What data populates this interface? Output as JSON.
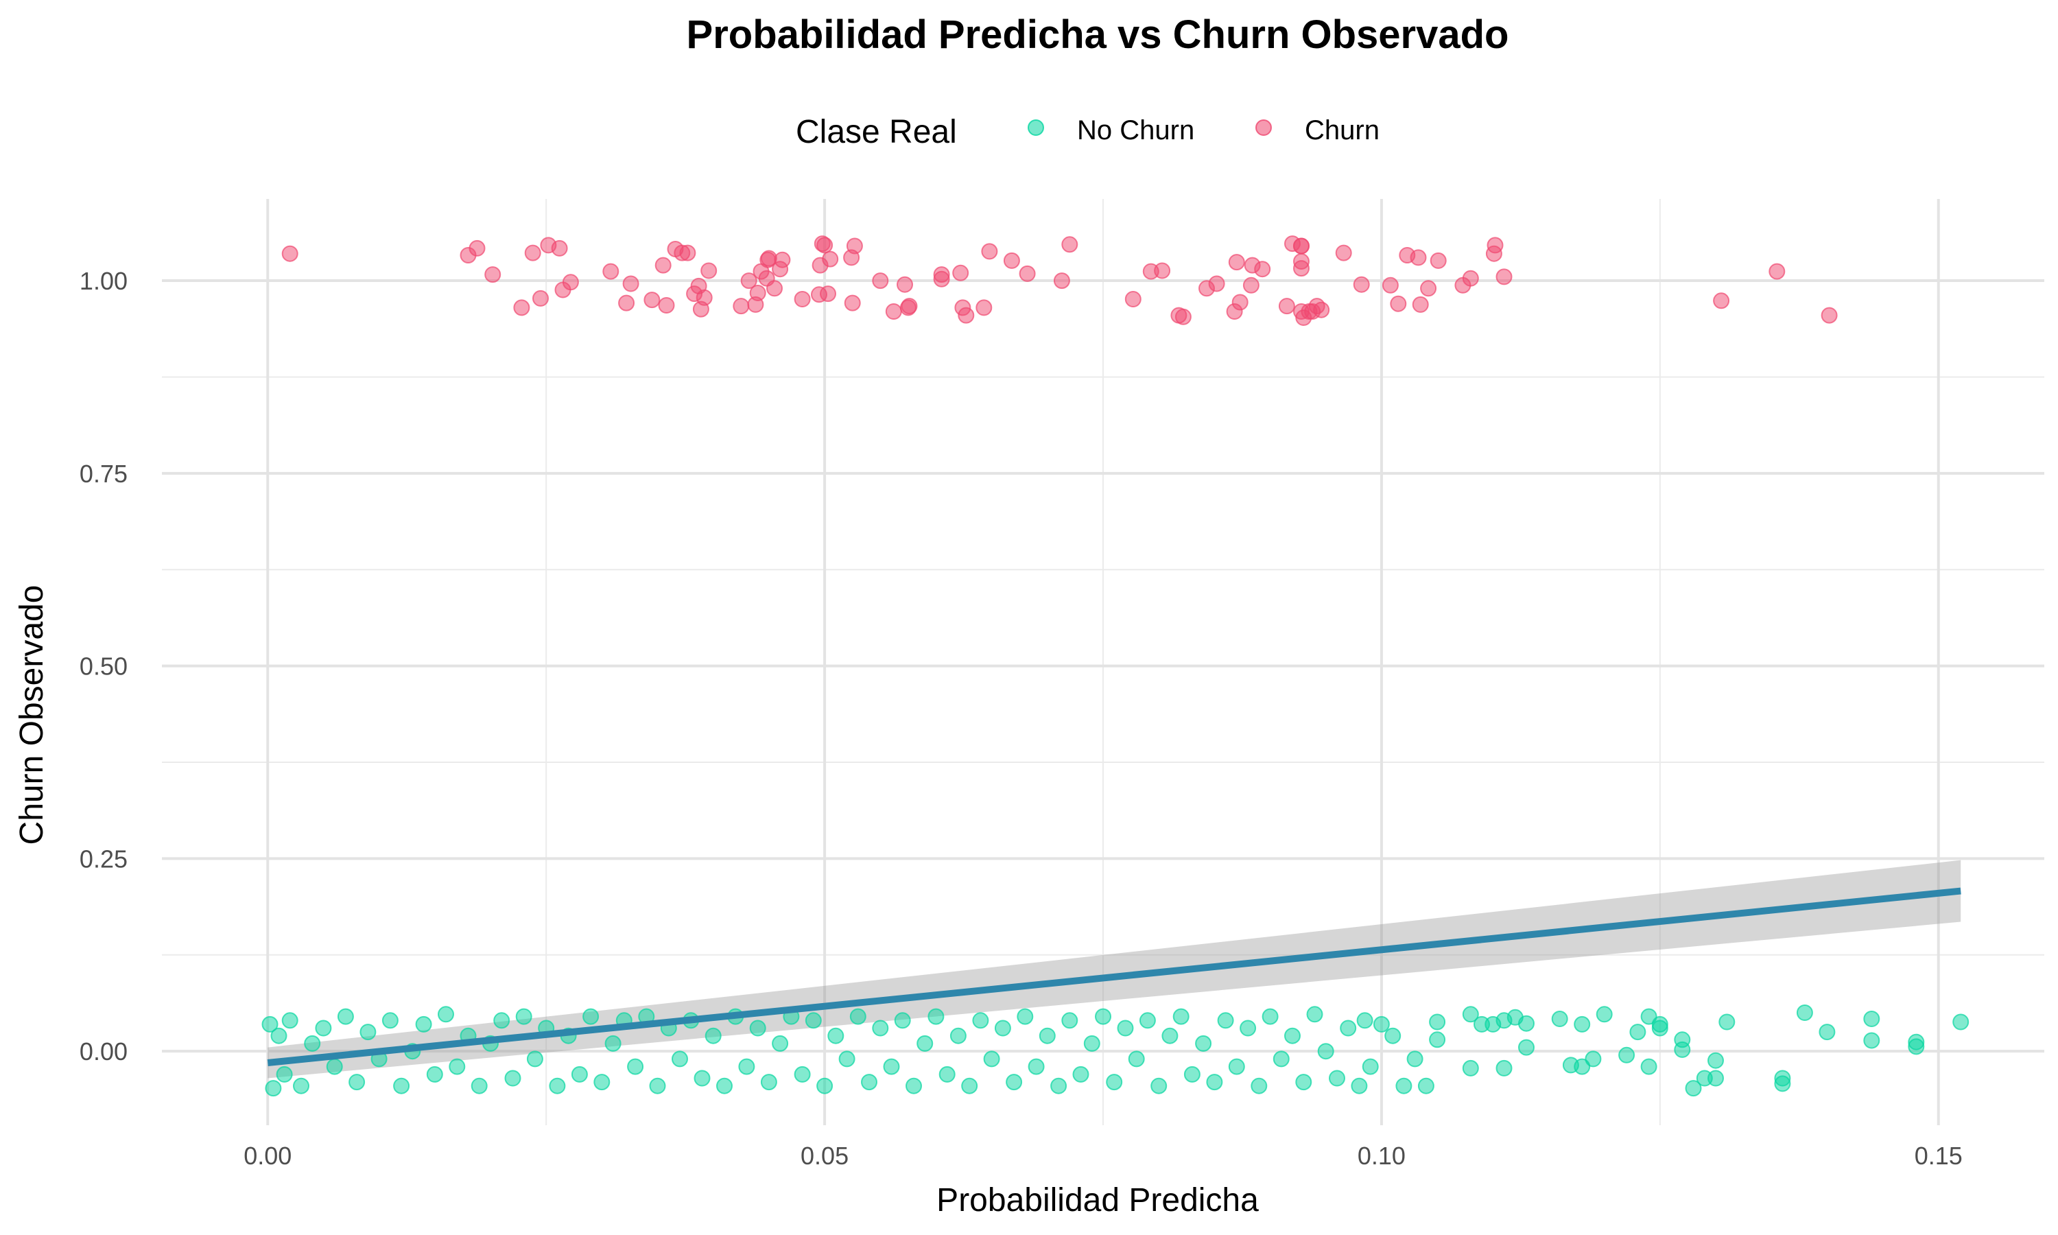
{
  "chart_data": {
    "type": "scatter",
    "title": "Probabilidad Predicha vs Churn Observado",
    "xlabel": "Probabilidad Predicha",
    "ylabel": "Churn Observado",
    "xlim": [
      -0.0095,
      0.1595
    ],
    "ylim": [
      -0.096,
      1.106
    ],
    "x_ticks": [
      0.0,
      0.05,
      0.1,
      0.15
    ],
    "x_tick_labels": [
      "0.00",
      "0.05",
      "0.10",
      "0.15"
    ],
    "y_ticks": [
      0.0,
      0.25,
      0.5,
      0.75,
      1.0
    ],
    "y_tick_labels": [
      "0.00",
      "0.25",
      "0.50",
      "0.75",
      "1.00"
    ],
    "grid": true,
    "legend": {
      "title": "Clase Real",
      "position": "top",
      "entries": [
        {
          "label": "No Churn",
          "color": "#06D6A0"
        },
        {
          "label": "Churn",
          "color": "#EF476F"
        }
      ]
    },
    "series": [
      {
        "name": "No Churn",
        "color": "#06D6A0",
        "jitter_note": "points jittered vertically around 0",
        "points": [
          [
            0.0002,
            0.035
          ],
          [
            0.0005,
            -0.048
          ],
          [
            0.001,
            0.02
          ],
          [
            0.0015,
            -0.03
          ],
          [
            0.002,
            0.04
          ],
          [
            0.003,
            -0.045
          ],
          [
            0.004,
            0.01
          ],
          [
            0.005,
            0.03
          ],
          [
            0.006,
            -0.02
          ],
          [
            0.007,
            0.045
          ],
          [
            0.008,
            -0.04
          ],
          [
            0.009,
            0.025
          ],
          [
            0.01,
            -0.01
          ],
          [
            0.011,
            0.04
          ],
          [
            0.012,
            -0.045
          ],
          [
            0.013,
            0.0
          ],
          [
            0.014,
            0.035
          ],
          [
            0.015,
            -0.03
          ],
          [
            0.016,
            0.048
          ],
          [
            0.017,
            -0.02
          ],
          [
            0.018,
            0.02
          ],
          [
            0.019,
            -0.045
          ],
          [
            0.02,
            0.01
          ],
          [
            0.021,
            0.04
          ],
          [
            0.022,
            -0.035
          ],
          [
            0.023,
            0.045
          ],
          [
            0.024,
            -0.01
          ],
          [
            0.025,
            0.03
          ],
          [
            0.026,
            -0.045
          ],
          [
            0.027,
            0.02
          ],
          [
            0.028,
            -0.03
          ],
          [
            0.029,
            0.045
          ],
          [
            0.03,
            -0.04
          ],
          [
            0.031,
            0.01
          ],
          [
            0.032,
            0.04
          ],
          [
            0.033,
            -0.02
          ],
          [
            0.034,
            0.045
          ],
          [
            0.035,
            -0.045
          ],
          [
            0.036,
            0.03
          ],
          [
            0.037,
            -0.01
          ],
          [
            0.038,
            0.04
          ],
          [
            0.039,
            -0.035
          ],
          [
            0.04,
            0.02
          ],
          [
            0.041,
            -0.045
          ],
          [
            0.042,
            0.045
          ],
          [
            0.043,
            -0.02
          ],
          [
            0.044,
            0.03
          ],
          [
            0.045,
            -0.04
          ],
          [
            0.046,
            0.01
          ],
          [
            0.047,
            0.045
          ],
          [
            0.048,
            -0.03
          ],
          [
            0.049,
            0.04
          ],
          [
            0.05,
            -0.045
          ],
          [
            0.051,
            0.02
          ],
          [
            0.052,
            -0.01
          ],
          [
            0.053,
            0.045
          ],
          [
            0.054,
            -0.04
          ],
          [
            0.055,
            0.03
          ],
          [
            0.056,
            -0.02
          ],
          [
            0.057,
            0.04
          ],
          [
            0.058,
            -0.045
          ],
          [
            0.059,
            0.01
          ],
          [
            0.06,
            0.045
          ],
          [
            0.061,
            -0.03
          ],
          [
            0.062,
            0.02
          ],
          [
            0.063,
            -0.045
          ],
          [
            0.064,
            0.04
          ],
          [
            0.065,
            -0.01
          ],
          [
            0.066,
            0.03
          ],
          [
            0.067,
            -0.04
          ],
          [
            0.068,
            0.045
          ],
          [
            0.069,
            -0.02
          ],
          [
            0.07,
            0.02
          ],
          [
            0.071,
            -0.045
          ],
          [
            0.072,
            0.04
          ],
          [
            0.073,
            -0.03
          ],
          [
            0.074,
            0.01
          ],
          [
            0.075,
            0.045
          ],
          [
            0.076,
            -0.04
          ],
          [
            0.077,
            0.03
          ],
          [
            0.078,
            -0.01
          ],
          [
            0.079,
            0.04
          ],
          [
            0.08,
            -0.045
          ],
          [
            0.081,
            0.02
          ],
          [
            0.082,
            0.045
          ],
          [
            0.083,
            -0.03
          ],
          [
            0.084,
            0.01
          ],
          [
            0.085,
            -0.04
          ],
          [
            0.086,
            0.04
          ],
          [
            0.087,
            -0.02
          ],
          [
            0.088,
            0.03
          ],
          [
            0.089,
            -0.045
          ],
          [
            0.09,
            0.045
          ],
          [
            0.091,
            -0.01
          ],
          [
            0.092,
            0.02
          ],
          [
            0.093,
            -0.04
          ],
          [
            0.094,
            0.048
          ],
          [
            0.095,
            0.0
          ],
          [
            0.096,
            -0.035
          ],
          [
            0.097,
            0.03
          ],
          [
            0.098,
            -0.045
          ],
          [
            0.0985,
            0.04
          ],
          [
            0.099,
            -0.02
          ],
          [
            0.1,
            0.035
          ],
          [
            0.101,
            0.02
          ],
          [
            0.102,
            -0.045
          ],
          [
            0.103,
            -0.01
          ],
          [
            0.104,
            -0.045
          ],
          [
            0.105,
            0.038
          ],
          [
            0.105,
            0.015
          ],
          [
            0.108,
            0.048
          ],
          [
            0.108,
            -0.022
          ],
          [
            0.109,
            0.035
          ],
          [
            0.11,
            0.035
          ],
          [
            0.111,
            -0.022
          ],
          [
            0.111,
            0.04
          ],
          [
            0.112,
            0.044
          ],
          [
            0.113,
            0.005
          ],
          [
            0.113,
            0.036
          ],
          [
            0.116,
            0.042
          ],
          [
            0.117,
            -0.018
          ],
          [
            0.118,
            0.035
          ],
          [
            0.118,
            -0.02
          ],
          [
            0.119,
            -0.01
          ],
          [
            0.12,
            0.048
          ],
          [
            0.122,
            -0.005
          ],
          [
            0.123,
            0.025
          ],
          [
            0.124,
            0.045
          ],
          [
            0.124,
            -0.02
          ],
          [
            0.125,
            0.035
          ],
          [
            0.125,
            0.03
          ],
          [
            0.127,
            0.015
          ],
          [
            0.127,
            0.002
          ],
          [
            0.128,
            -0.048
          ],
          [
            0.129,
            -0.035
          ],
          [
            0.13,
            -0.035
          ],
          [
            0.13,
            -0.012
          ],
          [
            0.131,
            0.038
          ],
          [
            0.136,
            -0.035
          ],
          [
            0.136,
            -0.042
          ],
          [
            0.138,
            0.05
          ],
          [
            0.14,
            0.025
          ],
          [
            0.144,
            0.042
          ],
          [
            0.144,
            0.014
          ],
          [
            0.148,
            0.012
          ],
          [
            0.148,
            0.006
          ],
          [
            0.152,
            0.038
          ]
        ]
      },
      {
        "name": "Churn",
        "color": "#EF476F",
        "points": [
          [
            0.002,
            1.035
          ],
          [
            0.018,
            1.033
          ],
          [
            0.0188,
            1.042
          ],
          [
            0.0202,
            1.008
          ],
          [
            0.0228,
            0.965
          ],
          [
            0.0238,
            1.036
          ],
          [
            0.0245,
            0.977
          ],
          [
            0.0252,
            1.046
          ],
          [
            0.0262,
            1.042
          ],
          [
            0.0265,
            0.988
          ],
          [
            0.0272,
            0.998
          ],
          [
            0.0308,
            1.012
          ],
          [
            0.0322,
            0.971
          ],
          [
            0.0326,
            0.996
          ],
          [
            0.0345,
            0.975
          ],
          [
            0.0355,
            1.02
          ],
          [
            0.0358,
            0.968
          ],
          [
            0.0366,
            1.041
          ],
          [
            0.0372,
            1.036
          ],
          [
            0.0377,
            1.036
          ],
          [
            0.0383,
            0.983
          ],
          [
            0.0387,
            0.993
          ],
          [
            0.0389,
            0.963
          ],
          [
            0.0392,
            0.978
          ],
          [
            0.0396,
            1.013
          ],
          [
            0.0425,
            0.967
          ],
          [
            0.0432,
            1.0
          ],
          [
            0.0438,
            0.969
          ],
          [
            0.044,
            0.984
          ],
          [
            0.0443,
            1.012
          ],
          [
            0.0448,
            1.003
          ],
          [
            0.0449,
            1.027
          ],
          [
            0.045,
            1.029
          ],
          [
            0.0455,
            0.99
          ],
          [
            0.046,
            1.015
          ],
          [
            0.0462,
            1.027
          ],
          [
            0.048,
            0.976
          ],
          [
            0.0495,
            0.982
          ],
          [
            0.0496,
            1.02
          ],
          [
            0.0498,
            1.048
          ],
          [
            0.05,
            1.046
          ],
          [
            0.0503,
            0.983
          ],
          [
            0.0505,
            1.028
          ],
          [
            0.0524,
            1.03
          ],
          [
            0.0525,
            0.971
          ],
          [
            0.0527,
            1.045
          ],
          [
            0.055,
            1.0
          ],
          [
            0.0562,
            0.96
          ],
          [
            0.0572,
            0.995
          ],
          [
            0.0575,
            0.965
          ],
          [
            0.0576,
            0.967
          ],
          [
            0.0605,
            1.008
          ],
          [
            0.0605,
            1.002
          ],
          [
            0.0622,
            1.01
          ],
          [
            0.0624,
            0.965
          ],
          [
            0.0627,
            0.955
          ],
          [
            0.0643,
            0.965
          ],
          [
            0.0648,
            1.038
          ],
          [
            0.0668,
            1.026
          ],
          [
            0.0682,
            1.009
          ],
          [
            0.0713,
            1.0
          ],
          [
            0.072,
            1.047
          ],
          [
            0.0777,
            0.976
          ],
          [
            0.0793,
            1.012
          ],
          [
            0.0803,
            1.013
          ],
          [
            0.0818,
            0.955
          ],
          [
            0.0822,
            0.953
          ],
          [
            0.0843,
            0.99
          ],
          [
            0.0852,
            0.996
          ],
          [
            0.0868,
            0.96
          ],
          [
            0.087,
            1.024
          ],
          [
            0.0873,
            0.972
          ],
          [
            0.0883,
            0.994
          ],
          [
            0.0884,
            1.02
          ],
          [
            0.0893,
            1.015
          ],
          [
            0.0915,
            0.967
          ],
          [
            0.092,
            1.048
          ],
          [
            0.0928,
            1.045
          ],
          [
            0.0928,
            1.045
          ],
          [
            0.0928,
            1.016
          ],
          [
            0.0928,
            1.025
          ],
          [
            0.0928,
            0.96
          ],
          [
            0.093,
            0.952
          ],
          [
            0.0935,
            0.96
          ],
          [
            0.0938,
            0.96
          ],
          [
            0.0942,
            0.967
          ],
          [
            0.0946,
            0.962
          ],
          [
            0.0966,
            1.036
          ],
          [
            0.0982,
            0.995
          ],
          [
            0.1008,
            0.994
          ],
          [
            0.1015,
            0.97
          ],
          [
            0.1023,
            1.033
          ],
          [
            0.1033,
            1.03
          ],
          [
            0.1035,
            0.969
          ],
          [
            0.1042,
            0.99
          ],
          [
            0.1051,
            1.026
          ],
          [
            0.1073,
            0.994
          ],
          [
            0.108,
            1.003
          ],
          [
            0.1101,
            1.035
          ],
          [
            0.1102,
            1.046
          ],
          [
            0.111,
            1.005
          ],
          [
            0.1305,
            0.974
          ],
          [
            0.1355,
            1.012
          ],
          [
            0.1402,
            0.955
          ]
        ]
      }
    ],
    "fit_line": {
      "color": "#2E86AB",
      "band_color": "#999999",
      "x": [
        0.0,
        0.152
      ],
      "y": [
        -0.015,
        0.208
      ],
      "se_upper": [
        0.005,
        0.248
      ],
      "se_lower": [
        -0.035,
        0.168
      ]
    }
  }
}
